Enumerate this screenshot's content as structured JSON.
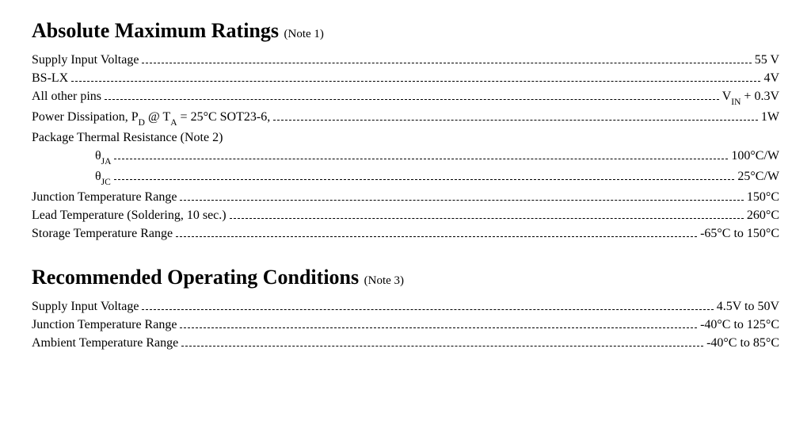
{
  "colors": {
    "text": "#000000",
    "background": "#ffffff"
  },
  "typography": {
    "font_family": "Times New Roman",
    "heading_size_pt": 20,
    "body_size_pt": 12,
    "note_size_pt": 11
  },
  "sections": {
    "abs": {
      "title": "Absolute Maximum Ratings",
      "note": "(Note 1)",
      "rows": {
        "supply": {
          "label": "Supply Input Voltage",
          "value": "55 V"
        },
        "bslx": {
          "label": "BS-LX",
          "value": "4V"
        },
        "other_pins": {
          "label_plain": "All other pins",
          "value_html": "V<sub>IN</sub> + 0.3V",
          "value_plain": "VIN + 0.3V"
        },
        "pd": {
          "label_prefix": "Power Dissipation, P",
          "label_sub1": "D",
          "label_mid": " @ T",
          "label_sub2": "A",
          "label_suffix": " = 25°C SOT23-6,",
          "value": "1W"
        },
        "pkg_thermal": {
          "label": "Package Thermal Resistance (Note 2)"
        },
        "theta_ja": {
          "sym": "θ",
          "sub": "JA",
          "value": "100°C/W"
        },
        "theta_jc": {
          "sym": "θ",
          "sub": "JC",
          "value": "25°C/W"
        },
        "junction": {
          "label": "Junction Temperature Range",
          "value": "150°C"
        },
        "lead": {
          "label": "Lead Temperature (Soldering, 10 sec.)",
          "value": "260°C"
        },
        "storage": {
          "label": "Storage Temperature Range",
          "value": "-65°C to 150°C"
        }
      }
    },
    "rec": {
      "title": "Recommended Operating Conditions",
      "note": "(Note 3)",
      "rows": {
        "supply": {
          "label": "Supply Input Voltage",
          "value": "4.5V to 50V"
        },
        "junction": {
          "label": "Junction Temperature Range",
          "value": "-40°C to 125°C"
        },
        "ambient": {
          "label": "Ambient Temperature Range",
          "value": "-40°C to 85°C"
        }
      }
    }
  }
}
